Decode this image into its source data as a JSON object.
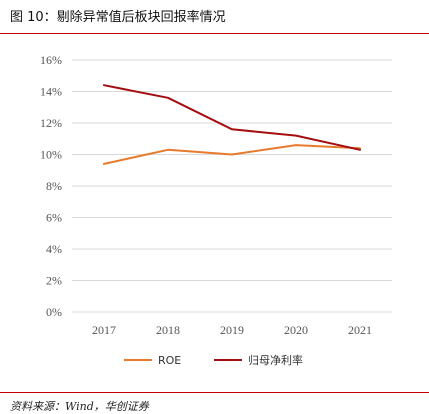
{
  "figure": {
    "title": "图 10：剔除异常值后板块回报率情况",
    "source": "资料来源：Wind，华创证券"
  },
  "colors": {
    "roe": "#E87A2D",
    "net_margin": "#A50E0E",
    "grid": "#D9D9D9",
    "rule": "#C00000"
  },
  "chart_data": {
    "type": "line",
    "title": "",
    "xlabel": "",
    "ylabel": "",
    "categories": [
      "2017",
      "2018",
      "2019",
      "2020",
      "2021"
    ],
    "ylim": [
      0,
      16
    ],
    "yticks": [
      0,
      2,
      4,
      6,
      8,
      10,
      12,
      14,
      16
    ],
    "ytick_labels": [
      "0%",
      "2%",
      "4%",
      "6%",
      "8%",
      "10%",
      "12%",
      "14%",
      "16%"
    ],
    "unit": "%",
    "grid": true,
    "legend": "bottom",
    "series": [
      {
        "name": "ROE",
        "values": [
          9.4,
          10.3,
          10.0,
          10.6,
          10.4
        ]
      },
      {
        "name": "归母净利率",
        "values": [
          14.4,
          13.6,
          11.6,
          11.2,
          10.3
        ]
      }
    ]
  }
}
